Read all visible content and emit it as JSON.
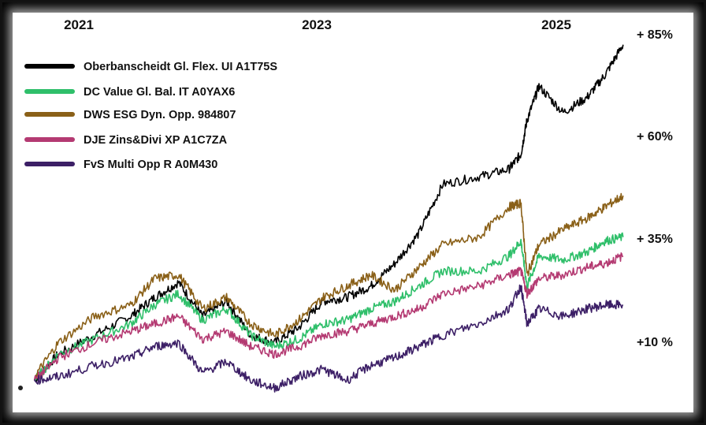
{
  "chart_data": {
    "type": "line",
    "x_ticks": [
      "2021",
      "2023",
      "2025"
    ],
    "y_ticks": [
      "+ 85%",
      "+ 60%",
      "+ 35%",
      "+10 %"
    ],
    "x_range": [
      2020.75,
      2025.8
    ],
    "y_range": [
      -10,
      92
    ],
    "series": [
      {
        "name": "Oberbanscheidt Gl. Flex. UI A1T75S",
        "color": "#000000",
        "x": [
          2020.8,
          2021.0,
          2021.3,
          2021.6,
          2021.8,
          2022.0,
          2022.2,
          2022.4,
          2022.6,
          2022.8,
          2023.0,
          2023.2,
          2023.4,
          2023.6,
          2023.8,
          2024.0,
          2024.2,
          2024.5,
          2024.75,
          2024.85,
          2024.9,
          2025.0,
          2025.2,
          2025.4,
          2025.55,
          2025.7
        ],
        "y": [
          -3,
          4,
          9,
          14,
          19,
          23,
          14,
          18,
          9,
          7,
          11,
          18,
          19,
          22,
          28,
          36,
          49,
          51,
          53,
          57,
          66,
          75,
          68,
          72,
          78,
          86
        ]
      },
      {
        "name": "DC Value Gl. Bal. IT A0YAX6",
        "color": "#2fbf6a",
        "x": [
          2020.8,
          2021.0,
          2021.3,
          2021.6,
          2021.8,
          2022.0,
          2022.2,
          2022.4,
          2022.6,
          2022.8,
          2023.0,
          2023.2,
          2023.4,
          2023.6,
          2023.8,
          2024.0,
          2024.2,
          2024.5,
          2024.75,
          2024.85,
          2024.9,
          2025.0,
          2025.2,
          2025.4,
          2025.55,
          2025.7
        ],
        "y": [
          -3,
          4,
          8,
          12,
          17,
          20,
          13,
          16,
          9,
          6,
          8,
          12,
          13,
          16,
          18,
          22,
          26,
          26,
          30,
          34,
          22,
          30,
          29,
          31,
          34,
          35
        ]
      },
      {
        "name": "DWS ESG Dyn. Opp. 984807",
        "color": "#8a6018",
        "x": [
          2020.8,
          2021.0,
          2021.3,
          2021.6,
          2021.8,
          2022.0,
          2022.2,
          2022.4,
          2022.6,
          2022.8,
          2023.0,
          2023.2,
          2023.4,
          2023.6,
          2023.8,
          2024.0,
          2024.2,
          2024.5,
          2024.75,
          2024.85,
          2024.9,
          2025.0,
          2025.2,
          2025.4,
          2025.55,
          2025.7
        ],
        "y": [
          -2,
          7,
          14,
          17,
          24,
          25,
          16,
          19,
          12,
          9,
          13,
          19,
          22,
          25,
          21,
          27,
          33,
          35,
          43,
          44,
          25,
          33,
          37,
          40,
          43,
          46
        ]
      },
      {
        "name": "DJE Zins&Divi XP A1C7ZA",
        "color": "#b43a72",
        "x": [
          2020.8,
          2021.0,
          2021.3,
          2021.6,
          2021.8,
          2022.0,
          2022.2,
          2022.4,
          2022.6,
          2022.8,
          2023.0,
          2023.2,
          2023.4,
          2023.6,
          2023.8,
          2024.0,
          2024.2,
          2024.5,
          2024.75,
          2024.85,
          2024.9,
          2025.0,
          2025.2,
          2025.4,
          2025.55,
          2025.7
        ],
        "y": [
          -3,
          3,
          7,
          10,
          12,
          14,
          8,
          10,
          6,
          4,
          6,
          9,
          10,
          12,
          14,
          16,
          20,
          22,
          25,
          26,
          20,
          24,
          25,
          27,
          28,
          30
        ]
      },
      {
        "name": "FvS Multi Opp R A0M430",
        "color": "#3c1f66",
        "x": [
          2020.8,
          2021.0,
          2021.3,
          2021.6,
          2021.8,
          2022.0,
          2022.2,
          2022.4,
          2022.6,
          2022.8,
          2023.0,
          2023.2,
          2023.4,
          2023.6,
          2023.8,
          2024.0,
          2024.2,
          2024.5,
          2024.75,
          2024.85,
          2024.9,
          2025.0,
          2025.2,
          2025.4,
          2025.55,
          2025.7
        ],
        "y": [
          -3,
          -2,
          1,
          3,
          6,
          7,
          -1,
          2,
          -3,
          -5,
          -2,
          0,
          -3,
          1,
          3,
          6,
          9,
          12,
          16,
          22,
          12,
          16,
          14,
          16,
          17,
          17
        ]
      }
    ]
  }
}
